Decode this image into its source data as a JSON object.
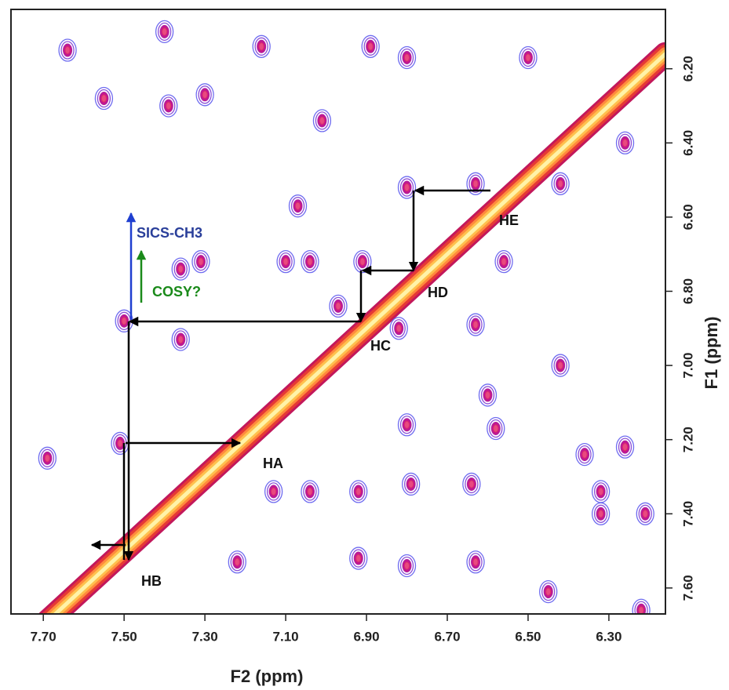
{
  "chart_data": {
    "type": "contour",
    "x_label": "F2 (ppm)",
    "y_label": "F1 (ppm)",
    "xlim": [
      7.78,
      6.16
    ],
    "ylim": [
      6.04,
      7.67
    ],
    "xticks": [
      {
        "value": 7.7,
        "label": "7.70"
      },
      {
        "value": 7.5,
        "label": "7.50"
      },
      {
        "value": 7.3,
        "label": "7.30"
      },
      {
        "value": 7.1,
        "label": "7.10"
      },
      {
        "value": 6.9,
        "label": "6.90"
      },
      {
        "value": 6.7,
        "label": "6.70"
      },
      {
        "value": 6.5,
        "label": "6.50"
      },
      {
        "value": 6.3,
        "label": "6.30"
      }
    ],
    "yticks": [
      {
        "value": 6.2,
        "label": "6.20"
      },
      {
        "value": 6.4,
        "label": "6.40"
      },
      {
        "value": 6.6,
        "label": "6.60"
      },
      {
        "value": 6.8,
        "label": "6.80"
      },
      {
        "value": 7,
        "label": "7.00"
      },
      {
        "value": 7.2,
        "label": "7.20"
      },
      {
        "value": 7.4,
        "label": "7.40"
      },
      {
        "value": 7.6,
        "label": "7.60"
      }
    ],
    "x": [
      7.5,
      6.91,
      6.56,
      6.8,
      7.64,
      7.4,
      7.39,
      7.3,
      7.01,
      6.8,
      6.5,
      6.42,
      6.26,
      7.07,
      7.1,
      7.04,
      6.97,
      6.82,
      6.63,
      6.42,
      6.8,
      6.6,
      6.58,
      6.36,
      6.26,
      6.79,
      6.92,
      7.04,
      7.13,
      6.64,
      6.32,
      6.32,
      6.21,
      6.92,
      6.8,
      6.63,
      7.22,
      6.45,
      6.22,
      7.69,
      7.51,
      7.36,
      7.36,
      7.31,
      7.55,
      6.89,
      6.63,
      7.16
    ],
    "values": [
      6.88,
      6.72,
      6.72,
      6.52,
      6.15,
      6.1,
      6.3,
      6.27,
      6.34,
      6.17,
      6.17,
      6.51,
      6.4,
      6.57,
      6.72,
      6.72,
      6.84,
      6.9,
      6.89,
      7.0,
      7.16,
      7.08,
      7.17,
      7.24,
      7.22,
      7.32,
      7.34,
      7.34,
      7.34,
      7.32,
      7.34,
      7.4,
      7.4,
      7.52,
      7.54,
      7.53,
      7.53,
      7.61,
      7.66,
      7.25,
      7.21,
      6.93,
      6.74,
      6.72,
      6.28,
      6.14,
      6.51,
      6.14
    ],
    "annotations": [
      "SICS-CH3",
      "COSY?",
      "HE",
      "HD",
      "HC",
      "HA",
      "HB"
    ]
  }
}
